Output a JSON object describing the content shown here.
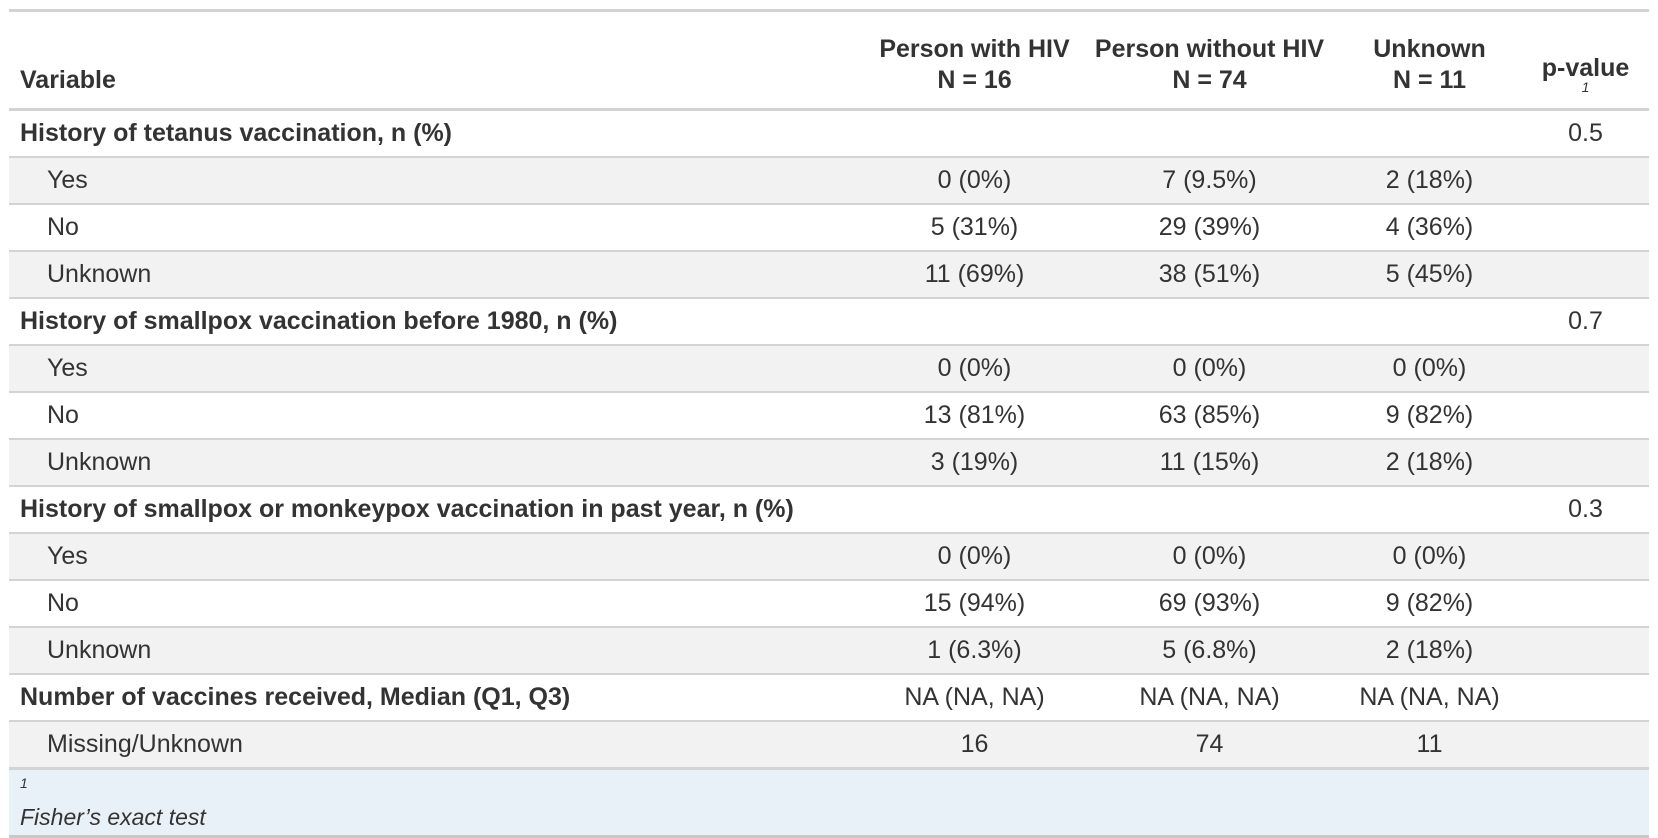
{
  "header": {
    "variable": "Variable",
    "col1_name": "Person with HIV",
    "col1_n": "N = 16",
    "col2_name": "Person without HIV",
    "col2_n": "N = 74",
    "col3_name": "Unknown",
    "col3_n": "N = 11",
    "pvalue": "p-value",
    "pvalue_footnote_mark": "1"
  },
  "rows": [
    {
      "label": "History of tetanus vaccination, n (%)",
      "c1": "",
      "c2": "",
      "c3": "",
      "p": "0.5"
    },
    {
      "label": "Yes",
      "c1": "0 (0%)",
      "c2": "7 (9.5%)",
      "c3": "2 (18%)",
      "p": ""
    },
    {
      "label": "No",
      "c1": "5 (31%)",
      "c2": "29 (39%)",
      "c3": "4 (36%)",
      "p": ""
    },
    {
      "label": "Unknown",
      "c1": "11 (69%)",
      "c2": "38 (51%)",
      "c3": "5 (45%)",
      "p": ""
    },
    {
      "label": "History of smallpox vaccination before 1980, n (%)",
      "c1": "",
      "c2": "",
      "c3": "",
      "p": "0.7"
    },
    {
      "label": "Yes",
      "c1": "0 (0%)",
      "c2": "0 (0%)",
      "c3": "0 (0%)",
      "p": ""
    },
    {
      "label": "No",
      "c1": "13 (81%)",
      "c2": "63 (85%)",
      "c3": "9 (82%)",
      "p": ""
    },
    {
      "label": "Unknown",
      "c1": "3 (19%)",
      "c2": "11 (15%)",
      "c3": "2 (18%)",
      "p": ""
    },
    {
      "label": "History of smallpox or monkeypox vaccination in past year, n (%)",
      "c1": "",
      "c2": "",
      "c3": "",
      "p": "0.3"
    },
    {
      "label": "Yes",
      "c1": "0 (0%)",
      "c2": "0 (0%)",
      "c3": "0 (0%)",
      "p": ""
    },
    {
      "label": "No",
      "c1": "15 (94%)",
      "c2": "69 (93%)",
      "c3": "9 (82%)",
      "p": ""
    },
    {
      "label": "Unknown",
      "c1": "1 (6.3%)",
      "c2": "5 (6.8%)",
      "c3": "2 (18%)",
      "p": ""
    },
    {
      "label": "Number of vaccines received, Median (Q1, Q3)",
      "c1": "NA (NA, NA)",
      "c2": "NA (NA, NA)",
      "c3": "NA (NA, NA)",
      "p": ""
    },
    {
      "label": "Missing/Unknown",
      "c1": "16",
      "c2": "74",
      "c3": "11",
      "p": ""
    }
  ],
  "footnote": {
    "mark": "1",
    "text": "Fisher’s exact test"
  },
  "colors": {
    "border": "#d3d3d3",
    "stripe": "#f2f2f2",
    "footnote_bg": "#e9f1f8",
    "text": "#333333"
  }
}
